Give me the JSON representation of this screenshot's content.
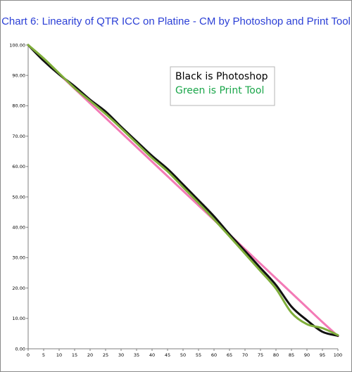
{
  "chart_data": {
    "type": "line",
    "title": "Chart 6:  Linearity of QTR ICC on Platine - CM by Photoshop and Print Tool",
    "xlim": [
      0,
      100
    ],
    "ylim": [
      0,
      100
    ],
    "x_ticks": [
      "0",
      "5",
      "10",
      "15",
      "20",
      "25",
      "30",
      "35",
      "40",
      "45",
      "50",
      "55",
      "60",
      "65",
      "70",
      "75",
      "80",
      "85",
      "90",
      "95",
      "100"
    ],
    "y_ticks": [
      "0.00",
      "10.00",
      "20.00",
      "30.00",
      "40.00",
      "50.00",
      "60.00",
      "70.00",
      "80.00",
      "90.00",
      "100.00"
    ],
    "grid": false,
    "legend": {
      "placement": "top-right",
      "entries": [
        "Black is Photoshop",
        "Green is Print Tool"
      ]
    },
    "x": [
      0,
      5,
      10,
      15,
      20,
      25,
      30,
      35,
      40,
      45,
      50,
      55,
      60,
      65,
      70,
      75,
      80,
      85,
      90,
      95,
      100
    ],
    "series": [
      {
        "color": "#f37ab6",
        "values": [
          100,
          95.2,
          90.4,
          85.6,
          80.8,
          76.0,
          71.2,
          66.4,
          61.6,
          56.8,
          52.0,
          47.2,
          42.4,
          37.6,
          32.8,
          28.0,
          23.2,
          18.4,
          13.6,
          8.8,
          4.2
        ]
      },
      {
        "color": "#111111",
        "values": [
          100,
          94.8,
          90.3,
          86.4,
          82.0,
          78.1,
          73.1,
          68.3,
          63.5,
          59.2,
          54.1,
          48.9,
          43.6,
          37.7,
          32.2,
          26.6,
          21.0,
          13.9,
          9.4,
          5.6,
          4.3
        ]
      },
      {
        "color": "#7fae3a",
        "values": [
          100,
          95.6,
          90.7,
          85.8,
          81.6,
          77.3,
          72.6,
          67.7,
          62.8,
          58.4,
          53.2,
          48.0,
          42.6,
          37.0,
          31.3,
          25.6,
          19.8,
          11.9,
          8.1,
          6.8,
          4.5
        ]
      }
    ]
  },
  "colors": {
    "title": "#2b3fd6",
    "legend_black": "#000000",
    "legend_green": "#1aa64a"
  }
}
